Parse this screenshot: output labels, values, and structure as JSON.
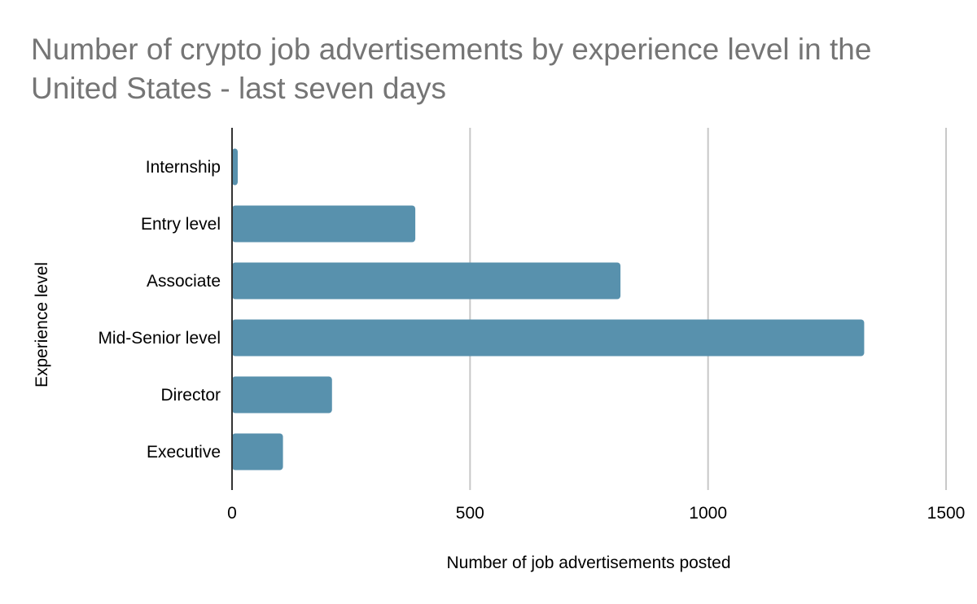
{
  "chart_data": {
    "type": "bar",
    "orientation": "horizontal",
    "title": "Number of crypto job advertisements by experience level in the United States - last seven days",
    "title_lines": [
      "Number of crypto job advertisements by experience level in the",
      "United States - last seven days"
    ],
    "xlabel": "Number of job advertisements posted",
    "ylabel": "Experience level",
    "categories": [
      "Internship",
      "Entry level",
      "Associate",
      "Mid-Senior level",
      "Director",
      "Executive"
    ],
    "values": [
      12,
      385,
      816,
      1328,
      210,
      107
    ],
    "xlim": [
      0,
      1500
    ],
    "xticks": [
      "0",
      "500",
      "1000",
      "1500"
    ],
    "grid": true,
    "legend": "none",
    "bar_color": "#5891ad",
    "title_color": "#757575"
  }
}
